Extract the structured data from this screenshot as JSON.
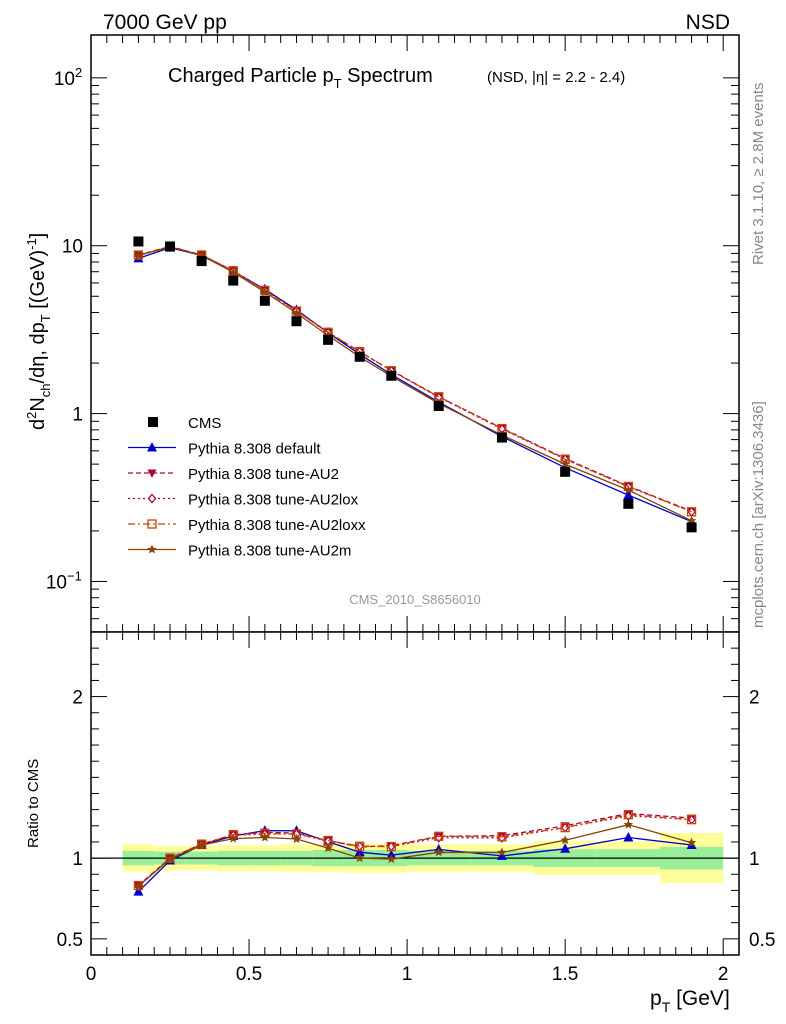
{
  "header": {
    "energy_label": "7000 GeV pp",
    "process_label": "NSD"
  },
  "side": {
    "rivet_label": "Rivet 3.1.10, ≥ 2.8M events",
    "mcplots_label": "mcplots.cern.ch [arXiv:1306.3436]"
  },
  "chart_data": {
    "type": "scatter",
    "title_main": "Charged Particle p",
    "title_main_sub": "T",
    "title_main_suffix": " Spectrum",
    "title_sub": "(NSD, |η| = 2.2 - 2.4)",
    "analysis_id": "CMS_2010_S8656010",
    "ylabel": "d²N_ch/dη dp_T [(GeV)^-1]",
    "xlabel_main": "p",
    "xlabel_sub": "T",
    "xlabel_unit": " [GeV]",
    "ratio_ylabel": "Ratio to CMS",
    "xlim": [
      0,
      2.05
    ],
    "ylim": [
      0.05,
      180
    ],
    "yscale": "log",
    "ratio_ylim": [
      0.4,
      2.4
    ],
    "x_ticks": [
      {
        "value": 0,
        "label": "0"
      },
      {
        "value": 0.5,
        "label": "0.5"
      },
      {
        "value": 1,
        "label": "1"
      },
      {
        "value": 1.5,
        "label": "1.5"
      },
      {
        "value": 2,
        "label": "2"
      }
    ],
    "y_ticks": [
      {
        "value": 0.1,
        "base": "10",
        "exp": "−1"
      },
      {
        "value": 1,
        "base": "1",
        "exp": ""
      },
      {
        "value": 10,
        "base": "10",
        "exp": ""
      },
      {
        "value": 100,
        "base": "10",
        "exp": "2"
      }
    ],
    "ratio_ticks": [
      {
        "value": 0.5,
        "label": "0.5"
      },
      {
        "value": 1,
        "label": "1"
      },
      {
        "value": 2,
        "label": "2"
      }
    ],
    "x": [
      0.15,
      0.25,
      0.35,
      0.45,
      0.55,
      0.65,
      0.75,
      0.85,
      0.95,
      1.1,
      1.3,
      1.5,
      1.7,
      1.9
    ],
    "bins": [
      [
        0.1,
        0.2
      ],
      [
        0.2,
        0.3
      ],
      [
        0.3,
        0.4
      ],
      [
        0.4,
        0.5
      ],
      [
        0.5,
        0.6
      ],
      [
        0.6,
        0.7
      ],
      [
        0.7,
        0.8
      ],
      [
        0.8,
        0.9
      ],
      [
        0.9,
        1.0
      ],
      [
        1.0,
        1.2
      ],
      [
        1.2,
        1.4
      ],
      [
        1.4,
        1.6
      ],
      [
        1.6,
        1.8
      ],
      [
        1.8,
        2.0
      ]
    ],
    "data": {
      "name": "CMS",
      "values": [
        10.6,
        9.9,
        8.1,
        6.2,
        4.7,
        3.55,
        2.75,
        2.18,
        1.68,
        1.11,
        0.72,
        0.45,
        0.29,
        0.21
      ]
    },
    "band_inner": [
      [
        0.955,
        1.045
      ],
      [
        0.96,
        1.04
      ],
      [
        0.96,
        1.04
      ],
      [
        0.955,
        1.045
      ],
      [
        0.955,
        1.045
      ],
      [
        0.955,
        1.045
      ],
      [
        0.95,
        1.05
      ],
      [
        0.95,
        1.05
      ],
      [
        0.95,
        1.05
      ],
      [
        0.955,
        1.045
      ],
      [
        0.955,
        1.045
      ],
      [
        0.945,
        1.055
      ],
      [
        0.945,
        1.055
      ],
      [
        0.93,
        1.07
      ]
    ],
    "band_outer": [
      [
        0.915,
        1.085
      ],
      [
        0.925,
        1.075
      ],
      [
        0.925,
        1.075
      ],
      [
        0.92,
        1.08
      ],
      [
        0.92,
        1.08
      ],
      [
        0.915,
        1.085
      ],
      [
        0.915,
        1.085
      ],
      [
        0.91,
        1.09
      ],
      [
        0.91,
        1.09
      ],
      [
        0.915,
        1.085
      ],
      [
        0.915,
        1.085
      ],
      [
        0.895,
        1.105
      ],
      [
        0.895,
        1.105
      ],
      [
        0.845,
        1.155
      ]
    ],
    "series": [
      {
        "name": "Pythia 8.308 default",
        "color": "#0000cc",
        "marker": "triangle-up",
        "dash": "",
        "values": [
          8.4,
          9.75,
          8.75,
          7.05,
          5.5,
          4.15,
          3.03,
          2.26,
          1.71,
          1.17,
          0.73,
          0.476,
          0.327,
          0.227
        ]
      },
      {
        "name": "Pythia 8.308 tune-AU2",
        "color": "#aa0044",
        "marker": "triangle-down",
        "dash": "5,3",
        "values": [
          8.8,
          9.9,
          8.8,
          7.1,
          5.45,
          4.1,
          3.05,
          2.33,
          1.81,
          1.26,
          0.82,
          0.54,
          0.37,
          0.262
        ]
      },
      {
        "name": "Pythia 8.308 tune-AU2lox",
        "color": "#aa0044",
        "marker": "diamond-open",
        "dash": "2,3",
        "values": [
          8.75,
          9.85,
          8.8,
          7.08,
          5.4,
          4.08,
          3.04,
          2.34,
          1.8,
          1.25,
          0.81,
          0.535,
          0.366,
          0.26
        ]
      },
      {
        "name": "Pythia 8.308 tune-AU2loxx",
        "color": "#cc4400",
        "marker": "square-open",
        "dash": "7,3,2,3",
        "values": [
          8.8,
          9.9,
          8.8,
          7.1,
          5.42,
          4.08,
          3.05,
          2.34,
          1.8,
          1.26,
          0.815,
          0.535,
          0.368,
          0.26
        ]
      },
      {
        "name": "Pythia 8.308 tune-AU2m",
        "color": "#884400",
        "marker": "star",
        "dash": "",
        "values": [
          8.75,
          9.85,
          8.75,
          6.95,
          5.3,
          3.97,
          2.92,
          2.18,
          1.67,
          1.15,
          0.745,
          0.5,
          0.35,
          0.23
        ]
      }
    ]
  }
}
